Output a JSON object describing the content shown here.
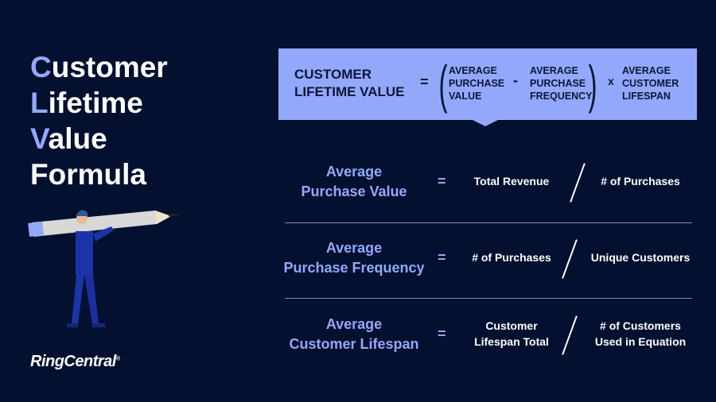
{
  "title": {
    "lines": [
      {
        "accent": "C",
        "rest": "ustomer"
      },
      {
        "accent": "L",
        "rest": "ifetime"
      },
      {
        "accent": "V",
        "rest": "alue"
      },
      {
        "accent": "",
        "rest": "Formula"
      }
    ]
  },
  "formula": {
    "lhs_line1": "CUSTOMER",
    "lhs_line2": "LIFETIME VALUE",
    "equals": "=",
    "term1": [
      "AVERAGE",
      "PURCHASE",
      "VALUE"
    ],
    "minus": "-",
    "term2": [
      "AVERAGE",
      "PURCHASE",
      "FREQUENCY"
    ],
    "times": "x",
    "term3": [
      "AVERAGE",
      "CUSTOMER",
      "LIFESPAN"
    ]
  },
  "rows": [
    {
      "label1": "Average",
      "label2": "Purchase Value",
      "equals": "=",
      "numerator": "Total Revenue",
      "denominator": "# of Purchases"
    },
    {
      "label1": "Average",
      "label2": "Purchase Frequency",
      "equals": "=",
      "numerator": "# of Purchases",
      "denominator": "Unique Customers"
    },
    {
      "label1": "Average",
      "label2": "Customer Lifespan",
      "equals": "=",
      "numerator": "Customer\nLifespan Total",
      "denominator": "# of Customers\nUsed in Equation"
    }
  ],
  "logo": {
    "text": "RingCentral",
    "mark": "®"
  },
  "colors": {
    "background": "#03102f",
    "accent": "#93a8fb"
  }
}
